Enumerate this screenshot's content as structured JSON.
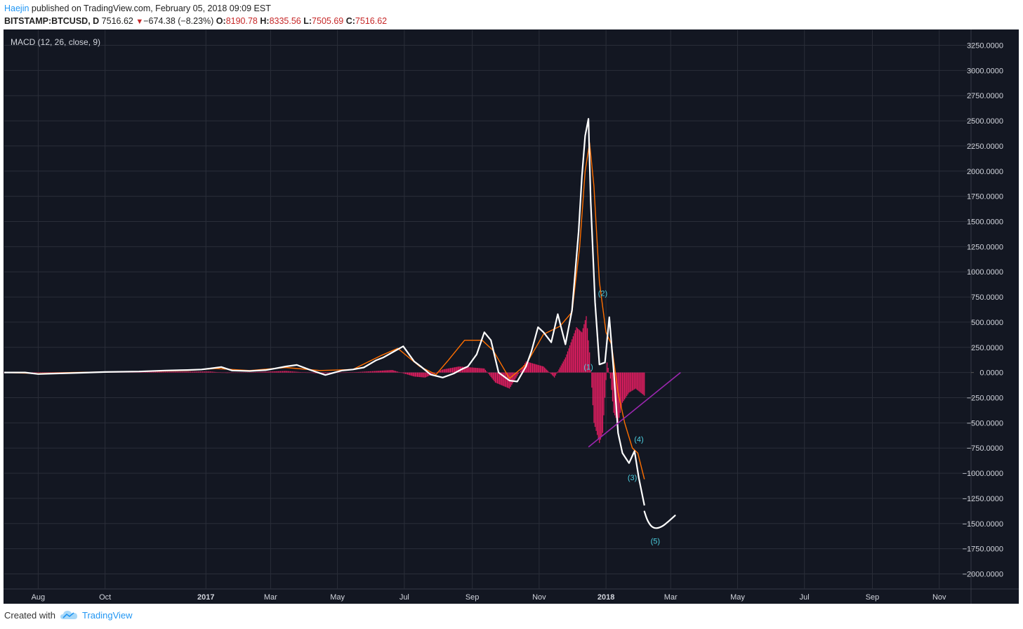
{
  "header": {
    "author": "Haejin",
    "published_text": " published on TradingView.com, February 05, 2018 09:09 EST"
  },
  "ohlc": {
    "symbol": "BITSTAMP:BTCUSD, D",
    "price": "7516.62",
    "change": "−674.38 (−8.23%)",
    "o_label": "O:",
    "o": "8190.78",
    "h_label": "H:",
    "h": "8335.56",
    "l_label": "L:",
    "l": "7505.69",
    "c_label": "C:",
    "c": "7516.62",
    "arrow_icon": "down-triangle-icon"
  },
  "footer": {
    "created_with": "Created with",
    "brand": "TradingView",
    "logo_icon": "tradingview-cloud-icon"
  },
  "colors": {
    "background": "#131722",
    "grid": "#2a2e39",
    "macd": "#ffffff",
    "signal": "#ff6f00",
    "histogram": "#e91e63",
    "trendline": "#9c27b0",
    "wave_label": "#4dd0e1",
    "axis_text": "#d1d4dc"
  },
  "chart_data": {
    "type": "line",
    "title": "MACD (12, 26, close, 9)",
    "xlabel": "",
    "ylabel": "",
    "x_range": [
      "2016-07-01",
      "2018-11-30"
    ],
    "ylim": [
      -2150,
      3400
    ],
    "y_ticks": [
      3250,
      3000,
      2750,
      2500,
      2250,
      2000,
      1750,
      1500,
      1250,
      1000,
      750,
      500,
      250,
      0,
      -250,
      -500,
      -750,
      -1000,
      -1250,
      -1500,
      -1750,
      -2000
    ],
    "y_tick_labels": [
      "3250.0000",
      "3000.0000",
      "2750.0000",
      "2500.0000",
      "2250.0000",
      "2000.0000",
      "1750.0000",
      "1500.0000",
      "1250.0000",
      "1000.0000",
      "750.0000",
      "500.0000",
      "250.0000",
      "0.0000",
      "−250.0000",
      "−500.0000",
      "−750.0000",
      "−1000.0000",
      "−1250.0000",
      "−1500.0000",
      "−1750.0000",
      "−2000.0000"
    ],
    "x_ticks": [
      {
        "date": "2016-08-01",
        "label": "Aug",
        "bold": false
      },
      {
        "date": "2016-10-01",
        "label": "Oct",
        "bold": false
      },
      {
        "date": "2017-01-01",
        "label": "2017",
        "bold": true
      },
      {
        "date": "2017-03-01",
        "label": "Mar",
        "bold": false
      },
      {
        "date": "2017-05-01",
        "label": "May",
        "bold": false
      },
      {
        "date": "2017-07-01",
        "label": "Jul",
        "bold": false
      },
      {
        "date": "2017-09-01",
        "label": "Sep",
        "bold": false
      },
      {
        "date": "2017-11-01",
        "label": "Nov",
        "bold": false
      },
      {
        "date": "2018-01-01",
        "label": "2018",
        "bold": true
      },
      {
        "date": "2018-03-01",
        "label": "Mar",
        "bold": false
      },
      {
        "date": "2018-05-01",
        "label": "May",
        "bold": false
      },
      {
        "date": "2018-07-01",
        "label": "Jul",
        "bold": false
      },
      {
        "date": "2018-09-01",
        "label": "Sep",
        "bold": false
      },
      {
        "date": "2018-11-01",
        "label": "Nov",
        "bold": false
      }
    ],
    "series": [
      {
        "key": "macd",
        "x": [
          "2016-07-01",
          "2016-07-20",
          "2016-08-01",
          "2016-08-15",
          "2016-09-01",
          "2016-10-01",
          "2016-11-01",
          "2016-11-25",
          "2016-12-15",
          "2016-12-28",
          "2017-01-05",
          "2017-01-15",
          "2017-01-25",
          "2017-02-10",
          "2017-02-25",
          "2017-03-05",
          "2017-03-15",
          "2017-03-25",
          "2017-04-05",
          "2017-04-20",
          "2017-05-05",
          "2017-05-15",
          "2017-05-25",
          "2017-06-05",
          "2017-06-12",
          "2017-06-20",
          "2017-06-30",
          "2017-07-10",
          "2017-07-16",
          "2017-07-25",
          "2017-08-05",
          "2017-08-15",
          "2017-08-22",
          "2017-08-28",
          "2017-09-05",
          "2017-09-12",
          "2017-09-18",
          "2017-09-25",
          "2017-10-05",
          "2017-10-12",
          "2017-10-20",
          "2017-10-25",
          "2017-10-31",
          "2017-11-05",
          "2017-11-12",
          "2017-11-18",
          "2017-11-25",
          "2017-12-01",
          "2017-12-07",
          "2017-12-10",
          "2017-12-13",
          "2017-12-16",
          "2017-12-18",
          "2017-12-22",
          "2017-12-26",
          "2017-12-31",
          "2018-01-04",
          "2018-01-08",
          "2018-01-12",
          "2018-01-16",
          "2018-01-22",
          "2018-01-27",
          "2018-01-31",
          "2018-02-05"
        ],
        "values": [
          0,
          0,
          -15,
          -10,
          -5,
          5,
          10,
          20,
          25,
          30,
          40,
          55,
          20,
          15,
          25,
          40,
          60,
          75,
          30,
          -25,
          20,
          30,
          50,
          120,
          150,
          200,
          260,
          110,
          60,
          -20,
          -50,
          -10,
          30,
          60,
          180,
          400,
          320,
          0,
          -80,
          -90,
          60,
          210,
          450,
          400,
          300,
          580,
          280,
          620,
          1400,
          1950,
          2350,
          2520,
          1700,
          700,
          80,
          100,
          550,
          20,
          -600,
          -800,
          -900,
          -780,
          -1050,
          -1320
        ]
      },
      {
        "key": "signal",
        "x": [
          "2016-07-01",
          "2016-08-01",
          "2016-09-01",
          "2016-10-01",
          "2016-11-01",
          "2016-12-15",
          "2017-01-10",
          "2017-02-10",
          "2017-03-15",
          "2017-04-15",
          "2017-05-15",
          "2017-06-10",
          "2017-06-25",
          "2017-07-15",
          "2017-07-30",
          "2017-08-10",
          "2017-08-25",
          "2017-09-10",
          "2017-09-20",
          "2017-10-05",
          "2017-10-20",
          "2017-11-05",
          "2017-11-20",
          "2017-12-01",
          "2017-12-08",
          "2017-12-13",
          "2017-12-17",
          "2017-12-21",
          "2017-12-26",
          "2018-01-01",
          "2018-01-06",
          "2018-01-12",
          "2018-01-18",
          "2018-01-25",
          "2018-01-30",
          "2018-02-05"
        ],
        "values": [
          0,
          -10,
          0,
          5,
          10,
          20,
          40,
          20,
          50,
          20,
          30,
          170,
          240,
          60,
          -20,
          120,
          320,
          320,
          220,
          -60,
          80,
          380,
          460,
          600,
          1250,
          2000,
          2280,
          1850,
          900,
          400,
          280,
          -200,
          -500,
          -750,
          -800,
          -1060
        ]
      },
      {
        "key": "histogram",
        "x": [
          "2016-07-01",
          "2017-01-05",
          "2017-01-20",
          "2017-03-15",
          "2017-04-15",
          "2017-05-20",
          "2017-06-20",
          "2017-07-10",
          "2017-07-20",
          "2017-08-05",
          "2017-08-20",
          "2017-09-12",
          "2017-09-22",
          "2017-10-05",
          "2017-10-20",
          "2017-11-05",
          "2017-11-15",
          "2017-11-25",
          "2017-12-05",
          "2017-12-10",
          "2017-12-14",
          "2017-12-17",
          "2017-12-21",
          "2017-12-26",
          "2017-12-29",
          "2018-01-02",
          "2018-01-05",
          "2018-01-08",
          "2018-01-12",
          "2018-01-16",
          "2018-01-22",
          "2018-01-28",
          "2018-02-05"
        ],
        "values": [
          0,
          10,
          -5,
          15,
          -10,
          5,
          25,
          -40,
          -50,
          30,
          60,
          40,
          -100,
          -160,
          110,
          60,
          -50,
          150,
          450,
          400,
          560,
          200,
          -500,
          -700,
          -600,
          100,
          -60,
          -400,
          -500,
          -300,
          -200,
          -160,
          -230
        ]
      }
    ],
    "trendline": {
      "x": [
        "2017-12-16",
        "2018-03-10"
      ],
      "y": [
        -740,
        0
      ]
    },
    "projection": {
      "x": [
        "2018-02-05",
        "2018-02-08",
        "2018-02-13",
        "2018-02-20",
        "2018-02-27",
        "2018-03-05"
      ],
      "y": [
        -1380,
        -1480,
        -1550,
        -1540,
        -1480,
        -1420
      ]
    },
    "annotations": [
      {
        "text": "(1)",
        "x": "2017-12-16",
        "y": 30
      },
      {
        "text": "(2)",
        "x": "2017-12-29",
        "y": 760
      },
      {
        "text": "(3)",
        "x": "2018-01-25",
        "y": -1070
      },
      {
        "text": "(4)",
        "x": "2018-01-31",
        "y": -690
      },
      {
        "text": "(5)",
        "x": "2018-02-15",
        "y": -1700
      }
    ]
  }
}
